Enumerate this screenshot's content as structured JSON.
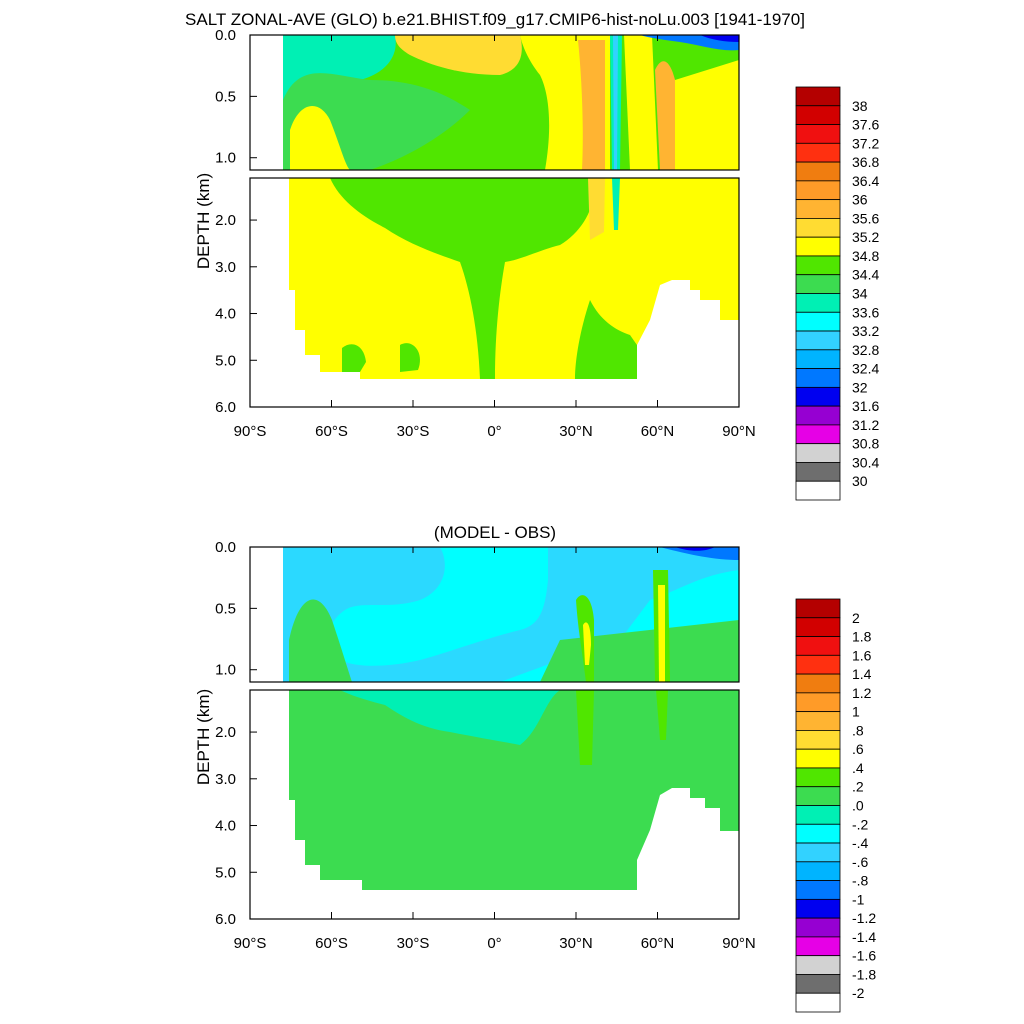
{
  "chart_data": [
    {
      "type": "heatmap",
      "title": "SALT ZONAL-AVE (GLO) b.e21.BHIST.f09_g17.CMIP6-hist-noLu.003 [1941-1970]",
      "ylabel": "DEPTH (km)",
      "xlabel": "",
      "x_tick_labels": [
        "90°S",
        "60°S",
        "30°S",
        "0°",
        "30°N",
        "60°N",
        "90°N"
      ],
      "x_ticks": [
        -90,
        -60,
        -30,
        0,
        30,
        60,
        90
      ],
      "y_ticks_upper": [
        0.0,
        0.5,
        1.0
      ],
      "y_tick_labels_upper": [
        "0.0",
        "0.5",
        "1.0"
      ],
      "y_ticks_lower": [
        2.0,
        3.0,
        4.0,
        5.0,
        6.0
      ],
      "y_tick_labels_lower": [
        "2.0",
        "3.0",
        "4.0",
        "5.0",
        "6.0"
      ],
      "xlim": [
        -90,
        90
      ],
      "ylim_upper": [
        0,
        1.1
      ],
      "ylim_lower": [
        1.1,
        6.0
      ],
      "colorbar_labels": [
        "38",
        "37.6",
        "37.2",
        "36.8",
        "36.4",
        "36",
        "35.6",
        "35.2",
        "34.8",
        "34.4",
        "34",
        "33.6",
        "33.2",
        "32.8",
        "32.4",
        "32",
        "31.6",
        "31.2",
        "30.8",
        "30.4",
        "30"
      ],
      "colorbar_colors": [
        "#b40000",
        "#d20000",
        "#f01010",
        "#ff3010",
        "#f07d10",
        "#ff9b28",
        "#ffb432",
        "#ffdc32",
        "#ffff00",
        "#50e600",
        "#3cdc50",
        "#00f0b4",
        "#00ffff",
        "#32d2ff",
        "#00b4ff",
        "#0078ff",
        "#0000f0",
        "#9600d2",
        "#e600e6",
        "#d2d2d2",
        "#6e6e6e",
        "#ffffff"
      ]
    },
    {
      "type": "heatmap",
      "title": "(MODEL - OBS)",
      "ylabel": "DEPTH (km)",
      "xlabel": "",
      "x_tick_labels": [
        "90°S",
        "60°S",
        "30°S",
        "0°",
        "30°N",
        "60°N",
        "90°N"
      ],
      "x_ticks": [
        -90,
        -60,
        -30,
        0,
        30,
        60,
        90
      ],
      "y_ticks_upper": [
        0.0,
        0.5,
        1.0
      ],
      "y_tick_labels_upper": [
        "0.0",
        "0.5",
        "1.0"
      ],
      "y_ticks_lower": [
        2.0,
        3.0,
        4.0,
        5.0,
        6.0
      ],
      "y_tick_labels_lower": [
        "2.0",
        "3.0",
        "4.0",
        "5.0",
        "6.0"
      ],
      "xlim": [
        -90,
        90
      ],
      "ylim_upper": [
        0,
        1.1
      ],
      "ylim_lower": [
        1.1,
        6.0
      ],
      "colorbar_labels": [
        "2",
        "1.8",
        "1.6",
        "1.4",
        "1.2",
        "1",
        ".8",
        ".6",
        ".4",
        ".2",
        ".0",
        "-.2",
        "-.4",
        "-.6",
        "-.8",
        "-1",
        "-1.2",
        "-1.4",
        "-1.6",
        "-1.8",
        "-2"
      ],
      "colorbar_colors": [
        "#b40000",
        "#d20000",
        "#f01010",
        "#ff3010",
        "#f07d10",
        "#ff9b28",
        "#ffb432",
        "#ffdc32",
        "#ffff00",
        "#50e600",
        "#3cdc50",
        "#00f0b4",
        "#00ffff",
        "#32d2ff",
        "#00b4ff",
        "#0078ff",
        "#0000f0",
        "#9600d2",
        "#e600e6",
        "#d2d2d2",
        "#6e6e6e",
        "#ffffff"
      ]
    }
  ]
}
